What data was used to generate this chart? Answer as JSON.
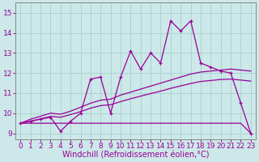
{
  "xlabel": "Windchill (Refroidissement éolien,°C)",
  "background_color": "#cce8e8",
  "grid_color": "#aad4d4",
  "line_color": "#990099",
  "x_data": [
    0,
    1,
    2,
    3,
    4,
    5,
    6,
    7,
    8,
    9,
    10,
    11,
    12,
    13,
    14,
    15,
    16,
    17,
    18,
    19,
    20,
    21,
    22,
    23
  ],
  "y_main": [
    9.5,
    9.6,
    9.7,
    9.8,
    9.1,
    9.6,
    10.0,
    11.7,
    11.8,
    10.0,
    11.8,
    13.1,
    12.2,
    13.0,
    12.5,
    14.6,
    14.1,
    14.6,
    12.5,
    12.3,
    12.1,
    12.0,
    10.5,
    9.0
  ],
  "y_line1": [
    9.5,
    9.7,
    9.85,
    10.0,
    9.95,
    10.1,
    10.3,
    10.5,
    10.65,
    10.7,
    10.9,
    11.05,
    11.2,
    11.35,
    11.5,
    11.65,
    11.8,
    11.95,
    12.05,
    12.1,
    12.15,
    12.2,
    12.15,
    12.1
  ],
  "y_line2": [
    9.5,
    9.6,
    9.72,
    9.84,
    9.8,
    9.93,
    10.08,
    10.25,
    10.38,
    10.42,
    10.58,
    10.72,
    10.85,
    10.98,
    11.1,
    11.24,
    11.36,
    11.48,
    11.58,
    11.63,
    11.68,
    11.7,
    11.65,
    11.6
  ],
  "y_flat": [
    9.5,
    9.5,
    9.5,
    9.5,
    9.5,
    9.5,
    9.5,
    9.5,
    9.5,
    9.5,
    9.5,
    9.5,
    9.5,
    9.5,
    9.5,
    9.5,
    9.5,
    9.5,
    9.5,
    9.5,
    9.5,
    9.5,
    9.5,
    9.0
  ],
  "ylim": [
    8.7,
    15.5
  ],
  "xlim": [
    -0.5,
    23.5
  ],
  "yticks": [
    9,
    10,
    11,
    12,
    13,
    14,
    15
  ],
  "xticks": [
    0,
    1,
    2,
    3,
    4,
    5,
    6,
    7,
    8,
    9,
    10,
    11,
    12,
    13,
    14,
    15,
    16,
    17,
    18,
    19,
    20,
    21,
    22,
    23
  ],
  "tick_fontsize": 6.5,
  "label_fontsize": 7
}
